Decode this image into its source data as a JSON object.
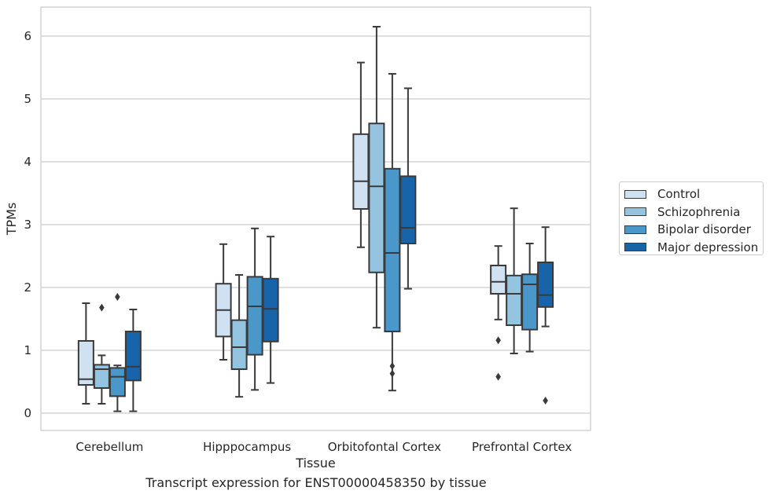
{
  "chart_data": {
    "type": "box",
    "title": "",
    "caption": "Transcript expression for ENST00000458350 by tissue",
    "xlabel": "Tissue",
    "ylabel": "TPMs",
    "ylim": [
      -0.25,
      6.48
    ],
    "yticks": [
      0,
      1,
      2,
      3,
      4,
      5,
      6
    ],
    "grid": true,
    "legend_position": "right",
    "categories": [
      "Cerebellum",
      "Hipppocampus",
      "Orbitofontal Cortex",
      "Prefrontal Cortex"
    ],
    "series": [
      {
        "name": "Control",
        "color": "#d0e1f2",
        "boxes": [
          {
            "whisker_low": 0.15,
            "q1": 0.45,
            "median": 0.54,
            "q3": 1.15,
            "whisker_high": 1.75,
            "outliers": []
          },
          {
            "whisker_low": 0.85,
            "q1": 1.22,
            "median": 1.64,
            "q3": 2.06,
            "whisker_high": 2.69,
            "outliers": []
          },
          {
            "whisker_low": 2.64,
            "q1": 3.25,
            "median": 3.69,
            "q3": 4.44,
            "whisker_high": 5.58,
            "outliers": []
          },
          {
            "whisker_low": 1.49,
            "q1": 1.9,
            "median": 2.09,
            "q3": 2.35,
            "whisker_high": 2.66,
            "outliers": [
              1.16,
              0.58
            ]
          }
        ]
      },
      {
        "name": "Schizophrenia",
        "color": "#94c4df",
        "boxes": [
          {
            "whisker_low": 0.15,
            "q1": 0.4,
            "median": 0.7,
            "q3": 0.77,
            "whisker_high": 0.92,
            "outliers": [
              1.68
            ]
          },
          {
            "whisker_low": 0.26,
            "q1": 0.7,
            "median": 1.05,
            "q3": 1.48,
            "whisker_high": 2.2,
            "outliers": []
          },
          {
            "whisker_low": 1.36,
            "q1": 2.24,
            "median": 3.61,
            "q3": 4.61,
            "whisker_high": 6.15,
            "outliers": []
          },
          {
            "whisker_low": 0.95,
            "q1": 1.4,
            "median": 1.9,
            "q3": 2.19,
            "whisker_high": 3.26,
            "outliers": []
          }
        ]
      },
      {
        "name": "Bipolar disorder",
        "color": "#4a98c9",
        "boxes": [
          {
            "whisker_low": 0.03,
            "q1": 0.27,
            "median": 0.58,
            "q3": 0.72,
            "whisker_high": 0.76,
            "outliers": [
              1.85
            ]
          },
          {
            "whisker_low": 0.37,
            "q1": 0.93,
            "median": 1.7,
            "q3": 2.17,
            "whisker_high": 2.94,
            "outliers": []
          },
          {
            "whisker_low": 0.36,
            "q1": 1.3,
            "median": 2.55,
            "q3": 3.89,
            "whisker_high": 5.4,
            "outliers": [
              0.75,
              0.63
            ]
          },
          {
            "whisker_low": 0.98,
            "q1": 1.33,
            "median": 2.05,
            "q3": 2.21,
            "whisker_high": 2.7,
            "outliers": []
          }
        ]
      },
      {
        "name": "Major depression",
        "color": "#1764ab",
        "boxes": [
          {
            "whisker_low": 0.03,
            "q1": 0.52,
            "median": 0.74,
            "q3": 1.3,
            "whisker_high": 1.65,
            "outliers": []
          },
          {
            "whisker_low": 0.48,
            "q1": 1.14,
            "median": 1.66,
            "q3": 2.14,
            "whisker_high": 2.81,
            "outliers": []
          },
          {
            "whisker_low": 1.98,
            "q1": 2.7,
            "median": 2.95,
            "q3": 3.77,
            "whisker_high": 5.17,
            "outliers": []
          },
          {
            "whisker_low": 1.38,
            "q1": 1.69,
            "median": 1.88,
            "q3": 2.4,
            "whisker_high": 2.96,
            "outliers": [
              0.2
            ]
          }
        ]
      }
    ]
  }
}
